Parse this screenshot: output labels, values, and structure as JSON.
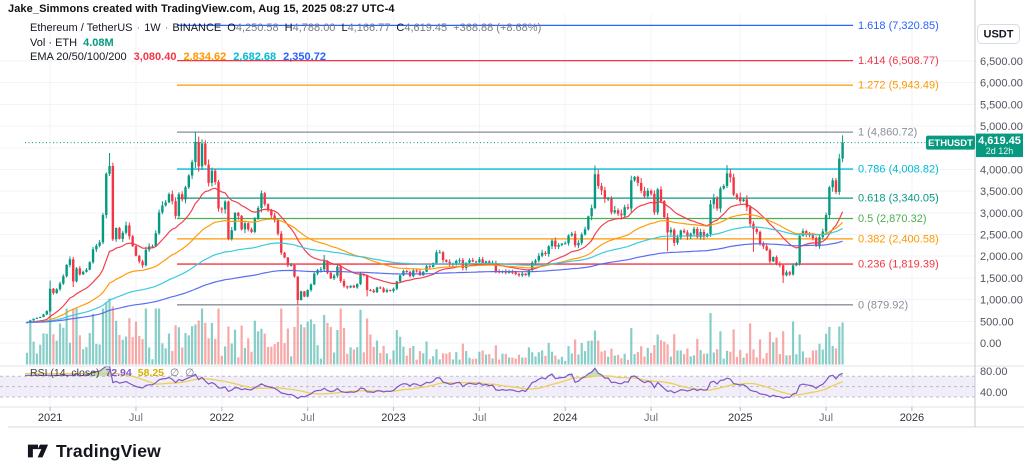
{
  "watermark": {
    "text": "Jake_Simmons created with TradingView.com, Aug 15, 2025 08:27 UTC-4"
  },
  "legend": {
    "symbol": "Ethereum / TetherUS",
    "sep": "·",
    "interval": "1W",
    "exchange": "BINANCE",
    "ohlc": [
      {
        "k": "O",
        "v": "4,250.58"
      },
      {
        "k": "H",
        "v": "4,788.00"
      },
      {
        "k": "L",
        "v": "4,166.77"
      },
      {
        "k": "C",
        "v": "4,619.45"
      }
    ],
    "change": "+368.88 (+8.68%)",
    "vol_label": "Vol · ETH",
    "vol_value": "4.08M",
    "ema_label": "EMA 20/50/100/200",
    "ema_values": [
      {
        "text": "3,080.40",
        "color": "#f23645"
      },
      {
        "text": "2,834.62",
        "color": "#ff9800"
      },
      {
        "text": "2,682.68",
        "color": "#00bcd4"
      },
      {
        "text": "2,350.72",
        "color": "#2962ff"
      }
    ]
  },
  "rsi": {
    "label": "RSI (14, close)",
    "value": "72.94",
    "value_color": "#7e57c2",
    "ma_value": "58.25",
    "ma_color": "#d8ae00",
    "empty": "∅",
    "length": 14,
    "band": [
      70,
      50,
      30
    ],
    "line_color": "#7e57c2",
    "ma_line_color": "#ecd05a",
    "band_fill": "rgba(126,87,194,0.10)",
    "over_fill": "rgba(76,175,80,0.35)",
    "under_fill": "rgba(255,82,82,0.30)"
  },
  "price_axis": {
    "currency": "USDT",
    "ticks": [
      {
        "label": "6,500.00",
        "value": 6500
      },
      {
        "label": "6,000.00",
        "value": 6000
      },
      {
        "label": "5,500.00",
        "value": 5500
      },
      {
        "label": "5,000.00",
        "value": 5000
      },
      {
        "label": "4,000.00",
        "value": 4000
      },
      {
        "label": "3,500.00",
        "value": 3500
      },
      {
        "label": "3,000.00",
        "value": 3000
      },
      {
        "label": "2,500.00",
        "value": 2500
      },
      {
        "label": "2,000.00",
        "value": 2000
      },
      {
        "label": "1,500.00",
        "value": 1500
      },
      {
        "label": "1,000.00",
        "value": 1000
      },
      {
        "label": "500.00",
        "value": 500
      },
      {
        "label": "0.00",
        "value": 0
      }
    ],
    "grid_values": [
      6500,
      6000,
      5500,
      5000,
      4500,
      4000,
      3500,
      3000,
      2500,
      2000,
      1500,
      1000,
      500,
      0
    ],
    "rsi_ticks": [
      {
        "label": "80.00",
        "value": 80
      },
      {
        "label": "40.00",
        "value": 40
      }
    ],
    "symbol_badge": "ETHUSDT",
    "last_price": "4,619.45",
    "last_price_value": 4619.45,
    "countdown": "2d 12h",
    "badge_color": "#089981"
  },
  "time_axis": {
    "labels": [
      {
        "text": "2021",
        "week": 7,
        "major": true
      },
      {
        "text": "Jul",
        "week": 33,
        "major": false
      },
      {
        "text": "2022",
        "week": 59,
        "major": true
      },
      {
        "text": "Jul",
        "week": 85,
        "major": false
      },
      {
        "text": "2023",
        "week": 111,
        "major": true
      },
      {
        "text": "Jul",
        "week": 137,
        "major": false
      },
      {
        "text": "2024",
        "week": 163,
        "major": true
      },
      {
        "text": "Jul",
        "week": 189,
        "major": false
      },
      {
        "text": "2025",
        "week": 216,
        "major": true
      },
      {
        "text": "Jul",
        "week": 242,
        "major": false
      },
      {
        "text": "2026",
        "week": 268,
        "major": true
      }
    ]
  },
  "fib": {
    "levels": [
      {
        "label": "1.618 (7,320.85)",
        "price": 7320.85,
        "color": "#2962ff"
      },
      {
        "label": "1.414 (6,508.77)",
        "price": 6508.77,
        "color": "#f23645"
      },
      {
        "label": "1.272 (5,943.49)",
        "price": 5943.49,
        "color": "#ff9800"
      },
      {
        "label": "1 (4,860.72)",
        "price": 4860.72,
        "color": "#8a8e98"
      },
      {
        "label": "0.786 (4,008.82)",
        "price": 4008.82,
        "color": "#00bcd4"
      },
      {
        "label": "0.618 (3,340.05)",
        "price": 3340.05,
        "color": "#089981"
      },
      {
        "label": "0.5 (2,870.32)",
        "price": 2870.32,
        "color": "#4caf50"
      },
      {
        "label": "0.382 (2,400.58)",
        "price": 2400.58,
        "color": "#ff9800"
      },
      {
        "label": "0.236 (1,819.39)",
        "price": 1819.39,
        "color": "#f23645"
      },
      {
        "label": "0 (879.92)",
        "price": 879.92,
        "color": "#8a8e98"
      }
    ]
  },
  "footer": {
    "brand": "TradingView"
  },
  "colors": {
    "up": "#089981",
    "down": "#f23645",
    "vol_up": "rgba(38,166,154,0.55)",
    "vol_down": "rgba(239,83,80,0.5)",
    "grid": "#f0f3fa",
    "divider": "#e0e3eb",
    "axis_line": "#c5c8d0",
    "axis_text": "#50535e",
    "ema_lines": [
      "#f23645",
      "#ff9800",
      "#2fc8dc",
      "#5166f0"
    ],
    "current_price": "#089981"
  },
  "chart_data": {
    "type": "candlestick",
    "title": "Ethereum / TetherUS · 1W · BINANCE",
    "symbol": "ETHUSDT",
    "interval": "1W",
    "x_unit": "week (first candle = 2020-11-16, weekly bars through 2025-08-11)",
    "ylim": [
      0,
      7500
    ],
    "last_bar": {
      "open": 4250.58,
      "high": 4788.0,
      "low": 4166.77,
      "close": 4619.45,
      "change": 368.88,
      "change_pct": 8.68
    },
    "volume_display": "4.08M",
    "ema_periods": [
      20,
      50,
      100,
      200
    ],
    "ema_last": [
      3080.4,
      2834.62,
      2682.68,
      2350.72
    ],
    "rsi_last": 72.94,
    "rsi_ma_last": 58.25,
    "first_open": 460,
    "closes": [
      480,
      520,
      560,
      580,
      600,
      660,
      735,
      1250,
      1150,
      1240,
      1370,
      1540,
      1800,
      1930,
      1420,
      1720,
      1580,
      1640,
      1690,
      1860,
      2160,
      2240,
      2320,
      2950,
      3900,
      4080,
      2390,
      2650,
      2400,
      2540,
      2710,
      2460,
      2230,
      2010,
      1880,
      1790,
      2150,
      2230,
      2230,
      2530,
      3010,
      3170,
      3240,
      3430,
      3270,
      2930,
      3430,
      3310,
      3590,
      3860,
      4170,
      4630,
      4070,
      4600,
      4110,
      3690,
      3970,
      3710,
      3100,
      3080,
      3260,
      2400,
      2600,
      3000,
      2930,
      2620,
      2760,
      2620,
      2560,
      2860,
      3110,
      3450,
      3200,
      3060,
      2940,
      2830,
      2520,
      2080,
      1970,
      1790,
      1800,
      1530,
      990,
      1190,
      1070,
      1220,
      1350,
      1600,
      1680,
      1700,
      1890,
      1620,
      1490,
      1550,
      1760,
      1430,
      1310,
      1280,
      1320,
      1280,
      1360,
      1590,
      1560,
      1220,
      1210,
      1170,
      1280,
      1260,
      1180,
      1220,
      1200,
      1250,
      1420,
      1560,
      1660,
      1640,
      1540,
      1670,
      1650,
      1560,
      1640,
      1770,
      1750,
      1840,
      2090,
      2090,
      1910,
      1870,
      1810,
      1830,
      1890,
      1910,
      1730,
      1850,
      1910,
      1880,
      1860,
      1930,
      1840,
      1880,
      1830,
      1850,
      1650,
      1630,
      1660,
      1620,
      1640,
      1630,
      1590,
      1560,
      1600,
      1560,
      1680,
      1850,
      1900,
      2010,
      2080,
      2050,
      2230,
      2360,
      2220,
      2260,
      2290,
      2300,
      2480,
      2520,
      2250,
      2310,
      2500,
      2620,
      2920,
      3110,
      3890,
      3620,
      3520,
      3320,
      3330,
      3010,
      3060,
      2980,
      2940,
      3130,
      3100,
      3750,
      3830,
      3690,
      3510,
      3380,
      3510,
      3440,
      3010,
      3540,
      3270,
      2900,
      2550,
      2610,
      2310,
      2430,
      2590,
      2550,
      2450,
      2520,
      2630,
      2440,
      2560,
      2450,
      2510,
      3200,
      3330,
      3100,
      3560,
      3620,
      3910,
      3820,
      3420,
      3360,
      3270,
      3310,
      3130,
      2750,
      2630,
      2560,
      2280,
      2230,
      2140,
      1880,
      1980,
      1830,
      1790,
      1560,
      1630,
      1580,
      1790,
      1840,
      2470,
      2580,
      2520,
      2480,
      2420,
      2230,
      2440,
      2570,
      2950,
      3590,
      3750,
      3480,
      4250,
      4619.45
    ],
    "wick_overrides": {
      "7": [
        1440,
        null
      ],
      "14": [
        null,
        1290
      ],
      "25": [
        4380,
        null
      ],
      "51": [
        4870,
        null
      ],
      "82": [
        null,
        880
      ],
      "90": [
        2030,
        null
      ],
      "103": [
        null,
        1075
      ],
      "124": [
        2140,
        null
      ],
      "172": [
        4093,
        null
      ],
      "194": [
        null,
        2110
      ],
      "212": [
        4100,
        null
      ],
      "220": [
        null,
        2100
      ],
      "229": [
        null,
        1385
      ],
      "247": [
        4788,
        4166.77
      ]
    },
    "volume_overrides": {
      "24": 62,
      "25": 66,
      "26": 58,
      "51": 40,
      "52": 44,
      "61": 38,
      "82": 58,
      "83": 40,
      "103": 46,
      "104": 30,
      "172": 34,
      "234": 30,
      "246": 38,
      "247": 42
    }
  }
}
